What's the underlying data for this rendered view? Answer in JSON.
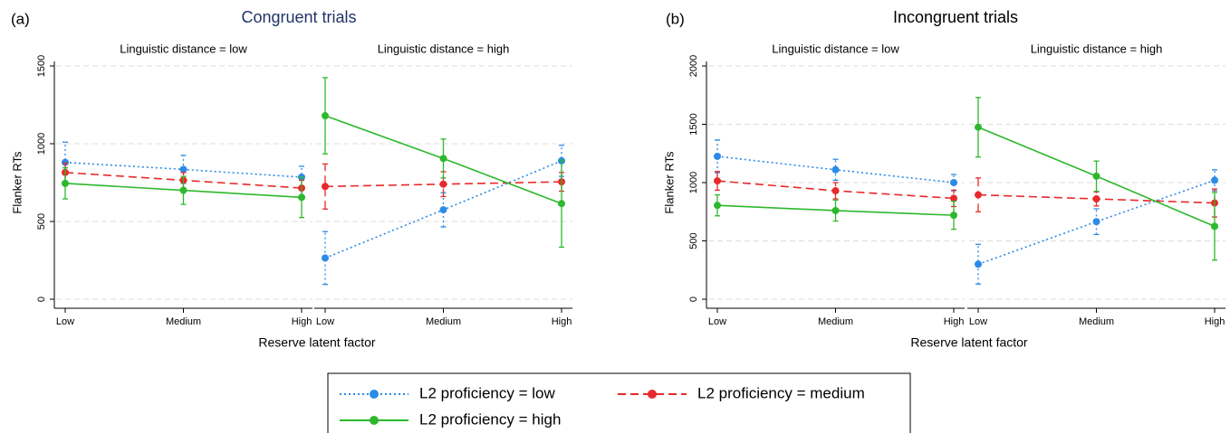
{
  "legend": {
    "series": [
      {
        "name": "L2 proficiency = low",
        "color": "#2b8be6",
        "dash": "2,3"
      },
      {
        "name": "L2 proficiency = medium",
        "color": "#e8292b",
        "dash": "9,5"
      },
      {
        "name": "L2 proficiency = high",
        "color": "#2db82d",
        "dash": "none"
      }
    ]
  },
  "chart_data": [
    {
      "type": "line",
      "panel_label": "(a)",
      "title": "Congruent trials",
      "title_color": "#1f3466",
      "xlabel": "Reserve latent factor",
      "ylabel": "Flanker RTs",
      "categories": [
        "Low",
        "Medium",
        "High"
      ],
      "ylim": [
        0,
        1500
      ],
      "yticks": [
        0,
        500,
        1000,
        1500
      ],
      "grid": true,
      "facets": [
        {
          "title": "Linguistic distance = low",
          "series": [
            {
              "values": [
                880,
                835,
                785
              ],
              "errors": [
                130,
                90,
                70
              ]
            },
            {
              "values": [
                815,
                765,
                715
              ],
              "errors": [
                60,
                50,
                50
              ]
            },
            {
              "values": [
                745,
                700,
                655
              ],
              "errors": [
                100,
                90,
                130
              ]
            }
          ]
        },
        {
          "title": "Linguistic distance = high",
          "series": [
            {
              "values": [
                265,
                575,
                890
              ],
              "errors": [
                170,
                110,
                100
              ]
            },
            {
              "values": [
                725,
                740,
                755
              ],
              "errors": [
                145,
                80,
                60
              ]
            },
            {
              "values": [
                1180,
                905,
                615
              ],
              "errors": [
                245,
                125,
                280
              ]
            }
          ]
        }
      ]
    },
    {
      "type": "line",
      "panel_label": "(b)",
      "title": "Incongruent trials",
      "title_color": "#000000",
      "xlabel": "Reserve latent factor",
      "ylabel": "Flanker RTs",
      "categories": [
        "Low",
        "Medium",
        "High"
      ],
      "ylim": [
        0,
        2000
      ],
      "yticks": [
        0,
        500,
        1000,
        1500,
        2000
      ],
      "grid": true,
      "facets": [
        {
          "title": "Linguistic distance = low",
          "series": [
            {
              "values": [
                1225,
                1110,
                1000
              ],
              "errors": [
                140,
                90,
                70
              ]
            },
            {
              "values": [
                1015,
                930,
                865
              ],
              "errors": [
                80,
                70,
                70
              ]
            },
            {
              "values": [
                805,
                760,
                720
              ],
              "errors": [
                90,
                90,
                120
              ]
            }
          ]
        },
        {
          "title": "Linguistic distance = high",
          "series": [
            {
              "values": [
                300,
                665,
                1020
              ],
              "errors": [
                170,
                110,
                90
              ]
            },
            {
              "values": [
                895,
                860,
                825
              ],
              "errors": [
                145,
                60,
                120
              ]
            },
            {
              "values": [
                1475,
                1055,
                625
              ],
              "errors": [
                255,
                130,
                290
              ]
            }
          ]
        }
      ]
    }
  ]
}
